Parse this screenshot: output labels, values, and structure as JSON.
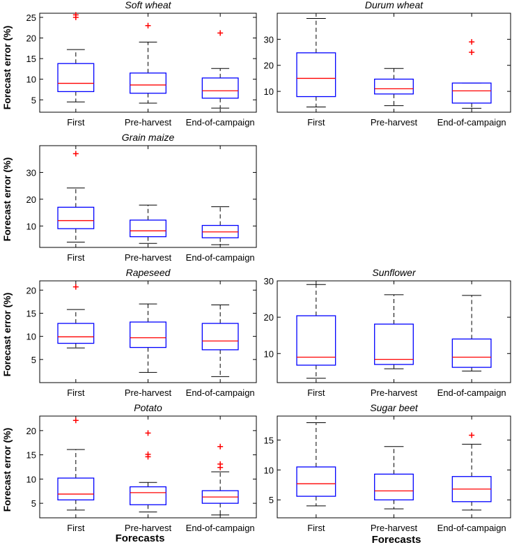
{
  "figure": {
    "ylabel": "Forecast error (%)",
    "xlabel": "Forecasts"
  },
  "chart_data": [
    {
      "type": "box",
      "title": "Soft wheat",
      "categories": [
        "First",
        "Pre-harvest",
        "End-of-campaign"
      ],
      "ylim": [
        2,
        26
      ],
      "yticks": [
        5,
        10,
        15,
        20,
        25
      ],
      "boxes": [
        {
          "whisker_low": 4.5,
          "q1": 7.0,
          "median": 9.0,
          "q3": 13.8,
          "whisker_high": 17.2,
          "outliers": [
            25.0,
            25.6
          ]
        },
        {
          "whisker_low": 4.2,
          "q1": 6.6,
          "median": 8.6,
          "q3": 11.5,
          "whisker_high": 19.0,
          "outliers": [
            23.0
          ]
        },
        {
          "whisker_low": 3.0,
          "q1": 5.4,
          "median": 7.2,
          "q3": 10.3,
          "whisker_high": 12.6,
          "outliers": [
            21.2
          ]
        }
      ]
    },
    {
      "type": "box",
      "title": "Durum wheat",
      "categories": [
        "First",
        "Pre-harvest",
        "End-of-campaign"
      ],
      "ylim": [
        2,
        40
      ],
      "yticks": [
        10,
        20,
        30
      ],
      "boxes": [
        {
          "whisker_low": 4.0,
          "q1": 8.0,
          "median": 15.0,
          "q3": 24.8,
          "whisker_high": 38.0,
          "outliers": []
        },
        {
          "whisker_low": 4.5,
          "q1": 9.0,
          "median": 11.0,
          "q3": 14.7,
          "whisker_high": 18.8,
          "outliers": []
        },
        {
          "whisker_low": 3.5,
          "q1": 5.5,
          "median": 10.2,
          "q3": 13.2,
          "whisker_high": 13.2,
          "outliers": [
            25.0,
            29.0
          ]
        }
      ]
    },
    {
      "type": "box",
      "title": "Grain maize",
      "categories": [
        "First",
        "Pre-harvest",
        "End-of-campaign"
      ],
      "ylim": [
        2,
        40
      ],
      "yticks": [
        10,
        20,
        30
      ],
      "boxes": [
        {
          "whisker_low": 4.0,
          "q1": 9.0,
          "median": 12.0,
          "q3": 17.0,
          "whisker_high": 24.2,
          "outliers": [
            37.0
          ]
        },
        {
          "whisker_low": 3.5,
          "q1": 6.0,
          "median": 8.2,
          "q3": 12.2,
          "whisker_high": 17.8,
          "outliers": []
        },
        {
          "whisker_low": 3.0,
          "q1": 5.6,
          "median": 7.8,
          "q3": 10.2,
          "whisker_high": 17.2,
          "outliers": []
        }
      ]
    },
    {
      "type": "box",
      "title": "Rapeseed",
      "categories": [
        "First",
        "Pre-harvest",
        "End-of-campaign"
      ],
      "ylim": [
        0,
        22
      ],
      "yticks": [
        5,
        10,
        15,
        20
      ],
      "boxes": [
        {
          "whisker_low": 7.5,
          "q1": 8.5,
          "median": 9.9,
          "q3": 12.8,
          "whisker_high": 15.8,
          "outliers": [
            20.7
          ]
        },
        {
          "whisker_low": 2.2,
          "q1": 7.6,
          "median": 9.7,
          "q3": 13.1,
          "whisker_high": 17.0,
          "outliers": []
        },
        {
          "whisker_low": 1.3,
          "q1": 7.1,
          "median": 9.0,
          "q3": 12.8,
          "whisker_high": 16.8,
          "outliers": []
        }
      ]
    },
    {
      "type": "box",
      "title": "Sunflower",
      "categories": [
        "First",
        "Pre-harvest",
        "End-of-campaign"
      ],
      "ylim": [
        2,
        30
      ],
      "yticks": [
        10,
        20,
        30
      ],
      "boxes": [
        {
          "whisker_low": 3.2,
          "q1": 6.8,
          "median": 9.0,
          "q3": 20.4,
          "whisker_high": 29.0,
          "outliers": []
        },
        {
          "whisker_low": 5.8,
          "q1": 7.0,
          "median": 8.4,
          "q3": 18.1,
          "whisker_high": 26.2,
          "outliers": []
        },
        {
          "whisker_low": 5.2,
          "q1": 6.2,
          "median": 9.0,
          "q3": 14.0,
          "whisker_high": 26.0,
          "outliers": []
        }
      ]
    },
    {
      "type": "box",
      "title": "Potato",
      "categories": [
        "First",
        "Pre-harvest",
        "End-of-campaign"
      ],
      "ylim": [
        2,
        23
      ],
      "yticks": [
        5,
        10,
        15,
        20
      ],
      "boxes": [
        {
          "whisker_low": 3.6,
          "q1": 5.7,
          "median": 6.9,
          "q3": 10.2,
          "whisker_high": 16.1,
          "outliers": [
            22.1
          ]
        },
        {
          "whisker_low": 3.2,
          "q1": 4.7,
          "median": 7.2,
          "q3": 8.4,
          "whisker_high": 9.3,
          "outliers": [
            14.6,
            15.1,
            19.5
          ]
        },
        {
          "whisker_low": 2.6,
          "q1": 5.0,
          "median": 6.3,
          "q3": 7.6,
          "whisker_high": 11.5,
          "outliers": [
            12.4,
            13.1,
            16.7
          ]
        }
      ]
    },
    {
      "type": "box",
      "title": "Sugar beet",
      "categories": [
        "First",
        "Pre-harvest",
        "End-of-campaign"
      ],
      "ylim": [
        2,
        19
      ],
      "yticks": [
        5,
        10,
        15
      ],
      "boxes": [
        {
          "whisker_low": 4.0,
          "q1": 5.6,
          "median": 7.7,
          "q3": 10.5,
          "whisker_high": 17.9,
          "outliers": []
        },
        {
          "whisker_low": 3.5,
          "q1": 5.0,
          "median": 6.5,
          "q3": 9.3,
          "whisker_high": 13.9,
          "outliers": []
        },
        {
          "whisker_low": 3.3,
          "q1": 4.7,
          "median": 6.8,
          "q3": 8.9,
          "whisker_high": 14.3,
          "outliers": [
            15.8
          ]
        }
      ]
    }
  ]
}
